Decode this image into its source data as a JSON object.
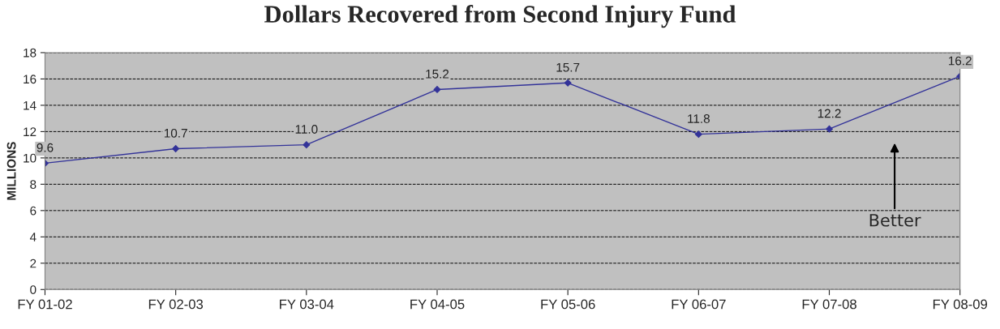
{
  "chart_data": {
    "type": "line",
    "title": "Dollars Recovered from Second Injury Fund",
    "ylabel": "MILLIONS",
    "categories": [
      "FY 01-02",
      "FY 02-03",
      "FY 03-04",
      "FY 04-05",
      "FY 05-06",
      "FY 06-07",
      "FY 07-08",
      "FY 08-09"
    ],
    "series": [
      {
        "color": "#333399",
        "values": [
          9.6,
          10.7,
          11.0,
          15.2,
          15.7,
          11.8,
          12.2,
          16.2
        ],
        "value_labels": [
          "9.6",
          "10.7",
          "11.0",
          "15.2",
          "15.7",
          "11.8",
          "12.2",
          "16.2"
        ]
      }
    ],
    "ylim": [
      0,
      18
    ],
    "yticks": [
      0,
      2,
      4,
      6,
      8,
      10,
      12,
      14,
      16,
      18
    ],
    "grid": "y",
    "marker": "diamond",
    "line_style": "solid",
    "annotations": [
      "Better"
    ]
  }
}
